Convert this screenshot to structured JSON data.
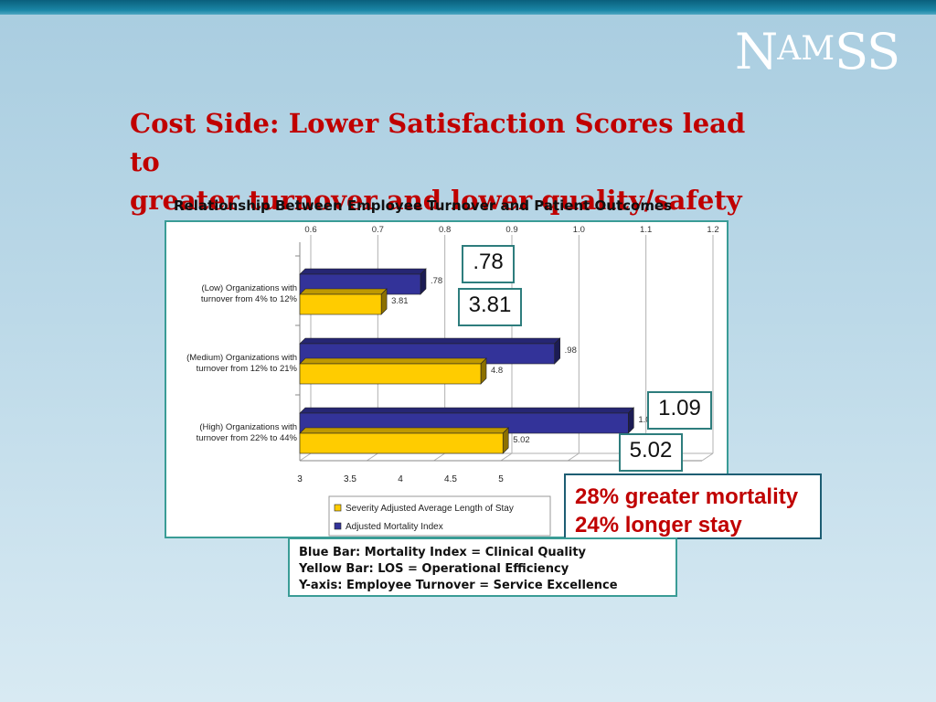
{
  "slide": {
    "logo": {
      "big": "N",
      "small": "AM",
      "rest": "SS"
    },
    "title_line1": "Cost Side: Lower Satisfaction Scores lead to",
    "title_line2": "greater turnover and lower quality/safety",
    "chart_caption": "Relationship Between Employee Turnover and Patient Outcomes"
  },
  "callouts": {
    "low_mortality": ".78",
    "low_los": "3.81",
    "high_mortality": "1.09",
    "high_los": "5.02"
  },
  "summary": {
    "line1": "28% greater mortality",
    "line2": "24% longer stay"
  },
  "notes": {
    "line1": "Blue Bar: Mortality Index = Clinical Quality",
    "line2": "Yellow Bar: LOS = Operational Efficiency",
    "line3": "Y-axis: Employee Turnover = Service Excellence"
  },
  "colors": {
    "title_red": "#c00000",
    "blue_bar": "#333399",
    "yellow_bar": "#ffcc00",
    "frame_teal": "#3a9c96"
  },
  "chart_data": {
    "type": "bar",
    "orientation": "horizontal",
    "categories": [
      [
        "(Low) Organizations with",
        "turnover from 4% to 12%"
      ],
      [
        "(Medium) Organizations with",
        "turnover from 12% to 21%"
      ],
      [
        "(High) Organizations with",
        "turnover from 22% to 44%"
      ]
    ],
    "series": [
      {
        "name": "Adjusted Mortality Index",
        "axis": "top",
        "values": [
          0.78,
          0.98,
          1.09
        ],
        "labels": [
          ".78",
          ".98",
          "1.09"
        ],
        "color": "#333399"
      },
      {
        "name": "Severity Adjusted Average Length of Stay",
        "axis": "bottom",
        "values": [
          3.81,
          4.8,
          5.02
        ],
        "labels": [
          "3.81",
          "4.8",
          "5.02"
        ],
        "color": "#ffcc00"
      }
    ],
    "top_axis": {
      "range": [
        0.6,
        1.2
      ],
      "ticks": [
        "0.6",
        "0.7",
        "0.8",
        "0.9",
        "1.0",
        "1.1",
        "1.2"
      ]
    },
    "bottom_axis": {
      "range": [
        3,
        7
      ],
      "ticks": [
        "3",
        "3.5",
        "4",
        "4.5",
        "5"
      ]
    },
    "legend_entries": [
      "Severity Adjusted Average Length of Stay",
      "Adjusted Mortality Index"
    ],
    "grid": true,
    "legend_position": "bottom"
  }
}
